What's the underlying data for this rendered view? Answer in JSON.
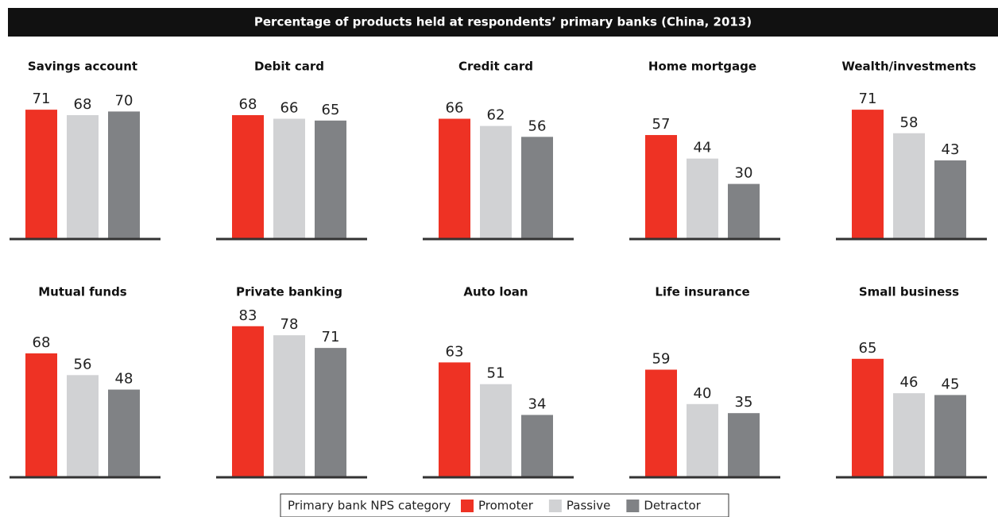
{
  "title": "Percentage of products held at respondents’ primary banks (China, 2013)",
  "legend": {
    "title": "Primary bank NPS category",
    "series": [
      {
        "name": "Promoter",
        "color": "#ee3224"
      },
      {
        "name": "Passive",
        "color": "#d1d2d4"
      },
      {
        "name": "Detractor",
        "color": "#808285"
      }
    ]
  },
  "ylim": [
    0,
    100
  ],
  "chart_data": [
    {
      "type": "bar",
      "title": "Savings account",
      "values": [
        71,
        68,
        70
      ]
    },
    {
      "type": "bar",
      "title": "Debit card",
      "values": [
        68,
        66,
        65
      ]
    },
    {
      "type": "bar",
      "title": "Credit card",
      "values": [
        66,
        62,
        56
      ]
    },
    {
      "type": "bar",
      "title": "Home mortgage",
      "values": [
        57,
        44,
        30
      ]
    },
    {
      "type": "bar",
      "title": "Wealth/investments",
      "values": [
        71,
        58,
        43
      ]
    },
    {
      "type": "bar",
      "title": "Mutual funds",
      "values": [
        68,
        56,
        48
      ]
    },
    {
      "type": "bar",
      "title": "Private banking",
      "values": [
        83,
        78,
        71
      ]
    },
    {
      "type": "bar",
      "title": "Auto loan",
      "values": [
        63,
        51,
        34
      ]
    },
    {
      "type": "bar",
      "title": "Life insurance",
      "values": [
        59,
        40,
        35
      ]
    },
    {
      "type": "bar",
      "title": "Small business",
      "values": [
        65,
        46,
        45
      ]
    }
  ]
}
